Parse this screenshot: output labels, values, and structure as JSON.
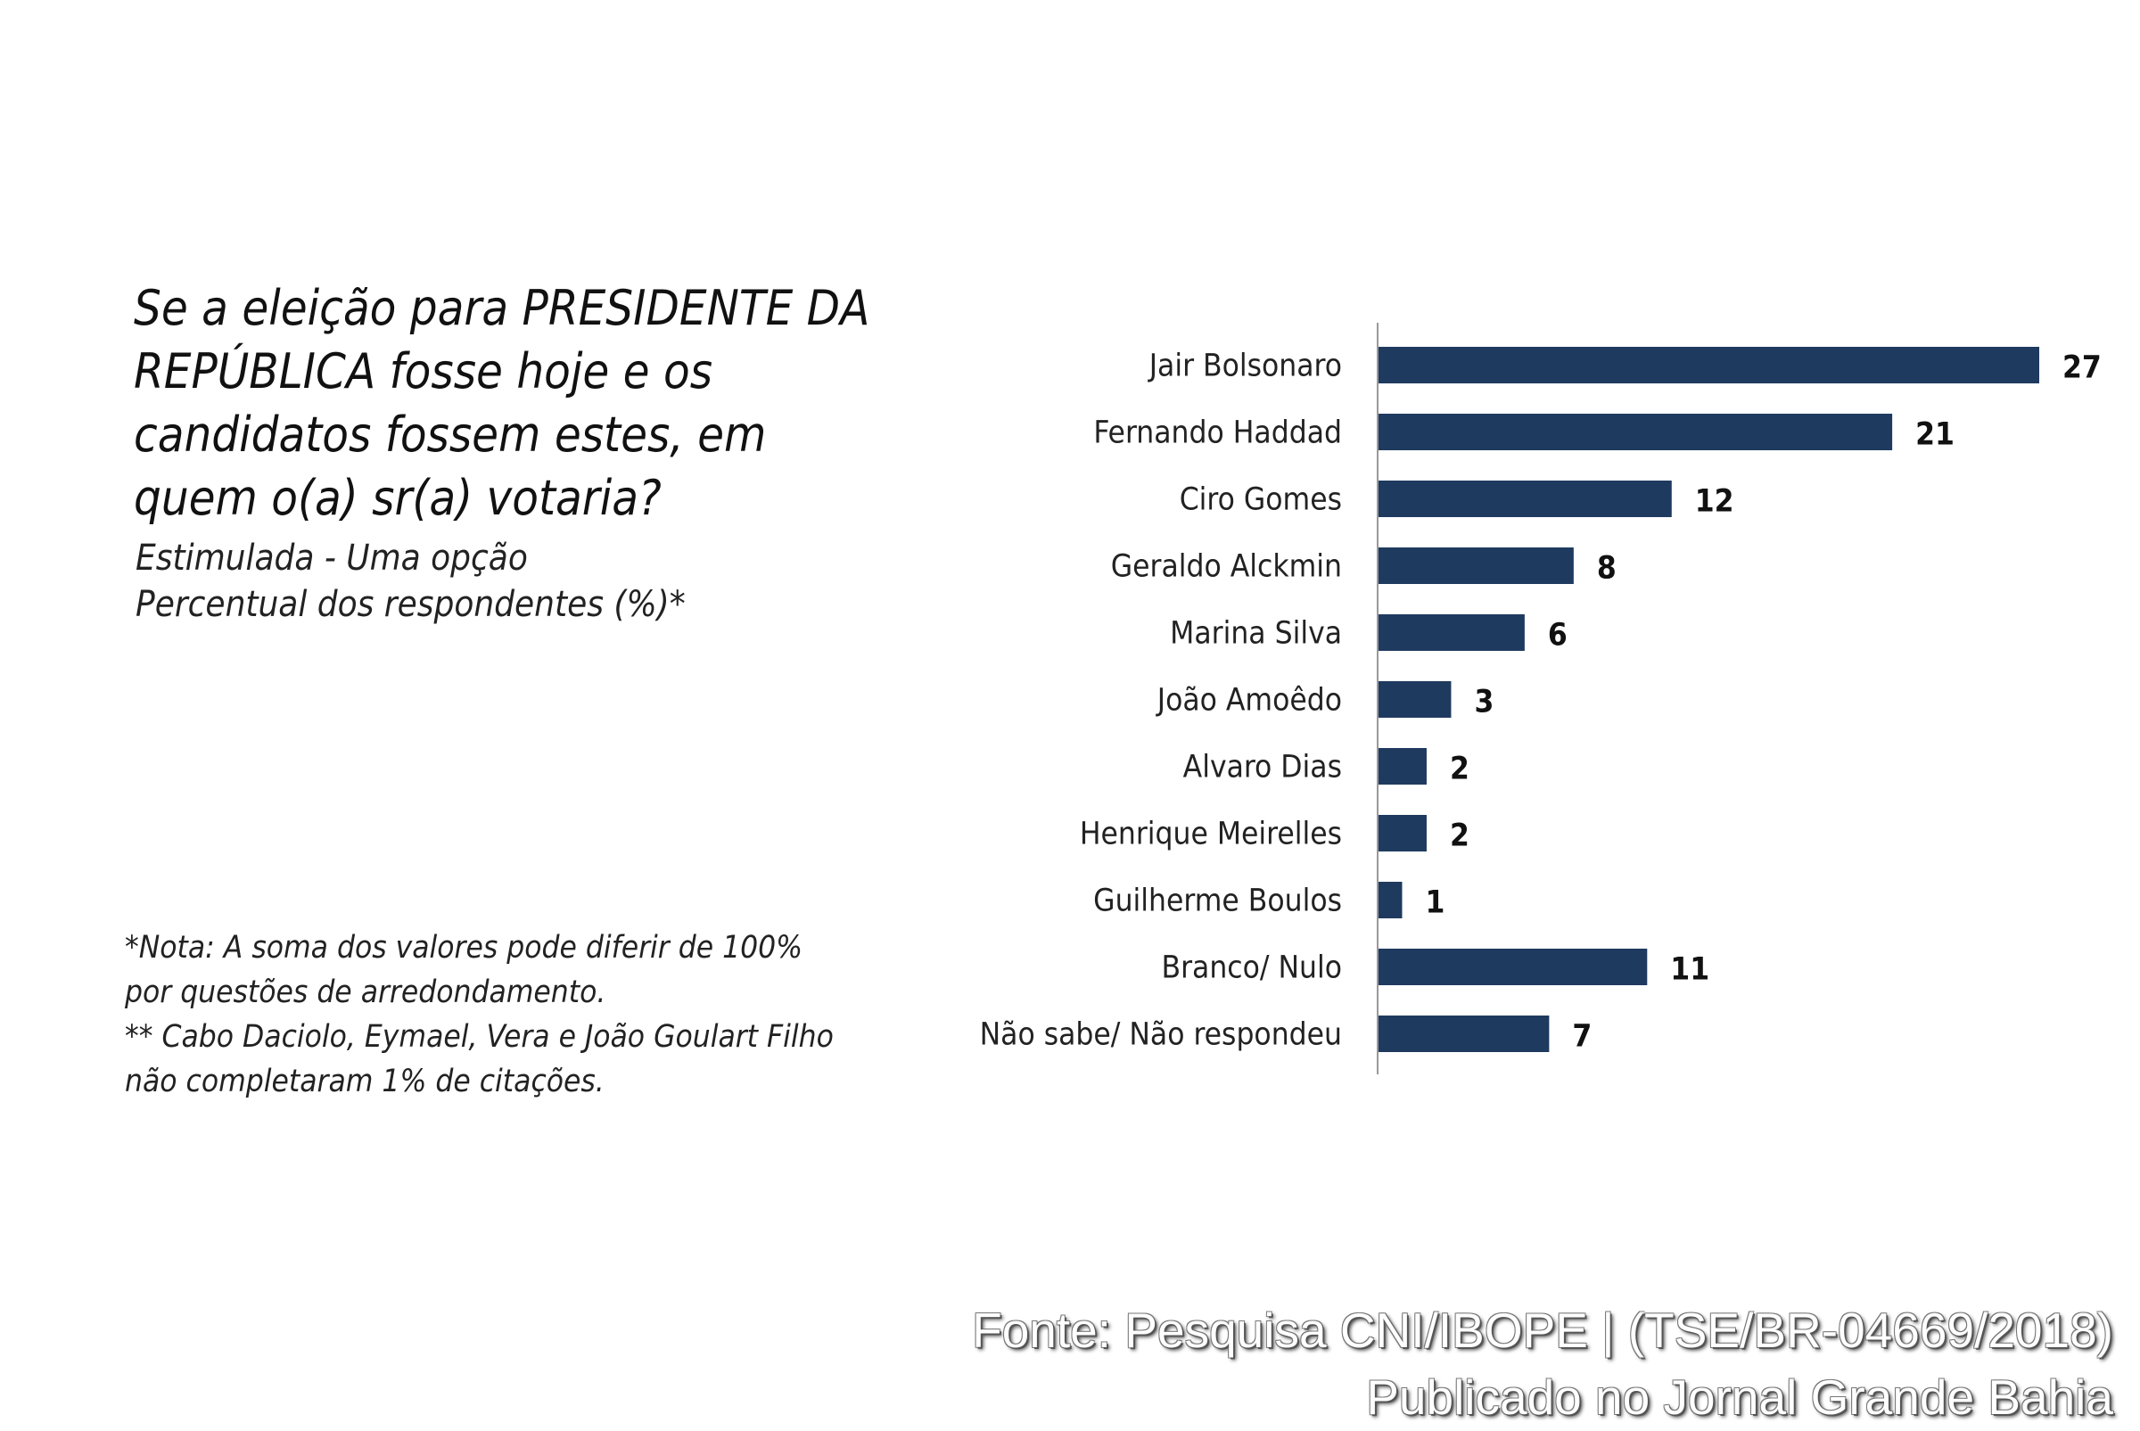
{
  "question": {
    "title": "Se a eleição para PRESIDENTE DA REPÚBLICA fosse hoje e os candidatos fossem estes, em quem o(a) sr(a) votaria?",
    "line1": "Estimulada - Uma opção",
    "line2": "Percentual dos respondentes (%)*"
  },
  "notes": {
    "line1": "*Nota: A soma dos valores pode diferir de 100%",
    "line2": "por questões de arredondamento.",
    "line3": "** Cabo Daciolo, Eymael, Vera e João Goulart Filho",
    "line4": "não completaram 1% de citações."
  },
  "source": {
    "line1": "Fonte: Pesquisa CNI/IBOPE | (TSE/BR-04669/2018)",
    "line2": "Publicado no Jornal Grande Bahia"
  },
  "chart_data": {
    "type": "bar",
    "orientation": "horizontal",
    "categories": [
      "Jair Bolsonaro",
      "Fernando Haddad",
      "Ciro Gomes",
      "Geraldo Alckmin",
      "Marina Silva",
      "João Amoêdo",
      "Alvaro Dias",
      "Henrique Meirelles",
      "Guilherme Boulos",
      "Branco/ Nulo",
      "Não sabe/ Não respondeu"
    ],
    "values": [
      27,
      21,
      12,
      8,
      6,
      3,
      2,
      2,
      1,
      11,
      7
    ],
    "xlim": [
      0,
      27
    ],
    "grid": false,
    "bar_color": "#1f3a5f",
    "axis_color": "#999999",
    "data_labels": true
  }
}
